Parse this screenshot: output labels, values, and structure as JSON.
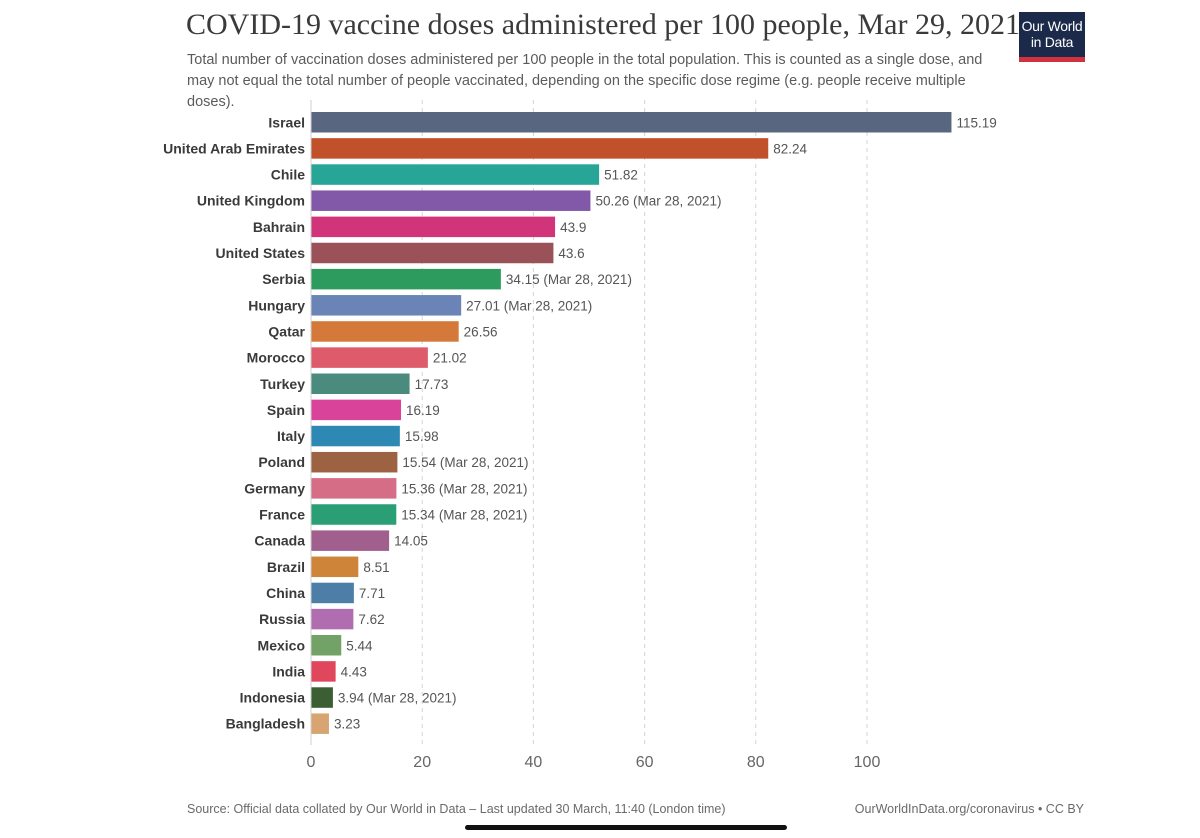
{
  "header": {
    "title": "COVID-19 vaccine doses administered per 100 people, Mar 29, 2021",
    "subtitle": "Total number of vaccination doses administered per 100 people in the total population. This is counted as a single dose, and may not equal the total number of people vaccinated, depending on the specific dose regime (e.g. people receive multiple doses).",
    "logo_line1": "Our World",
    "logo_line2": "in Data"
  },
  "footer": {
    "source": "Source: Official data collated by Our World in Data – Last updated 30 March, 11:40 (London time)",
    "credit": "OurWorldInData.org/coronavirus • CC BY"
  },
  "chart_data": {
    "type": "bar",
    "orientation": "horizontal",
    "title": "COVID-19 vaccine doses administered per 100 people, Mar 29, 2021",
    "xlabel": "",
    "ylabel": "",
    "xlim": [
      0,
      120
    ],
    "xticks": [
      0,
      20,
      40,
      60,
      80,
      100
    ],
    "grid": true,
    "categories": [
      "Israel",
      "United Arab Emirates",
      "Chile",
      "United Kingdom",
      "Bahrain",
      "United States",
      "Serbia",
      "Hungary",
      "Qatar",
      "Morocco",
      "Turkey",
      "Spain",
      "Italy",
      "Poland",
      "Germany",
      "France",
      "Canada",
      "Brazil",
      "China",
      "Russia",
      "Mexico",
      "India",
      "Indonesia",
      "Bangladesh"
    ],
    "values": [
      115.19,
      82.24,
      51.82,
      50.26,
      43.9,
      43.6,
      34.15,
      27.01,
      26.56,
      21.02,
      17.73,
      16.19,
      15.98,
      15.54,
      15.36,
      15.34,
      14.05,
      8.51,
      7.71,
      7.62,
      5.44,
      4.43,
      3.94,
      3.23
    ],
    "value_labels": [
      "115.19",
      "82.24",
      "51.82",
      "50.26 (Mar 28, 2021)",
      "43.9",
      "43.6",
      "34.15 (Mar 28, 2021)",
      "27.01 (Mar 28, 2021)",
      "26.56",
      "21.02",
      "17.73",
      "16.19",
      "15.98",
      "15.54 (Mar 28, 2021)",
      "15.36 (Mar 28, 2021)",
      "15.34 (Mar 28, 2021)",
      "14.05",
      "8.51",
      "7.71",
      "7.62",
      "5.44",
      "4.43",
      "3.94 (Mar 28, 2021)",
      "3.23"
    ],
    "colors": [
      "#58677f",
      "#c0512b",
      "#27a597",
      "#8259a8",
      "#d2347a",
      "#9a5157",
      "#2d9b5e",
      "#6b84b8",
      "#d4793a",
      "#dd5b6b",
      "#4a8b7e",
      "#d9449a",
      "#2e88b4",
      "#9c6241",
      "#d66d86",
      "#2a9e75",
      "#a05f8c",
      "#ce853a",
      "#4d7ea8",
      "#b06db0",
      "#73a266",
      "#e0475c",
      "#3b5e32",
      "#d8a572"
    ]
  }
}
